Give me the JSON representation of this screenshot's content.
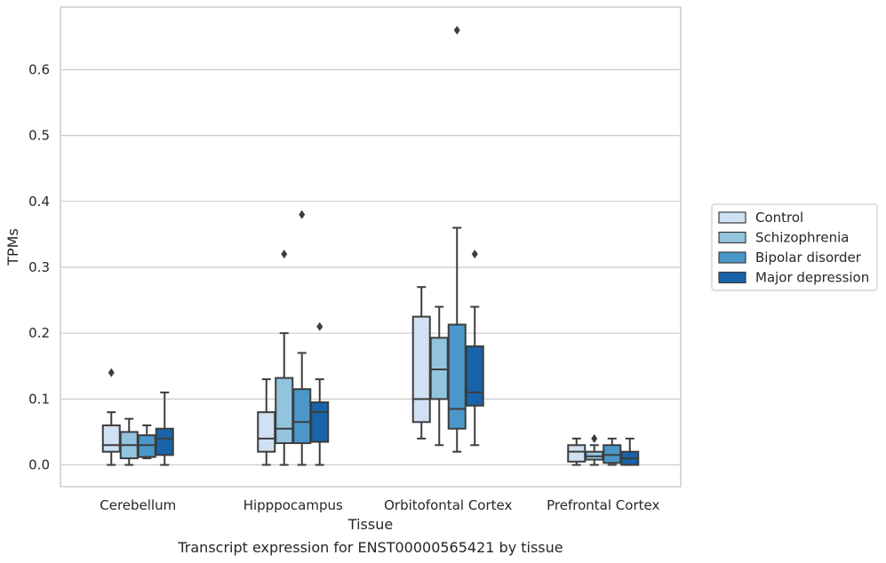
{
  "chart_data": {
    "type": "box",
    "xlabel": "Tissue",
    "ylabel": "TPMs",
    "caption": "Transcript expression for ENST00000565421 by tissue",
    "ylim": [
      -0.033,
      0.695
    ],
    "yticks": [
      "0.0",
      "0.1",
      "0.2",
      "0.3",
      "0.4",
      "0.5",
      "0.6"
    ],
    "grid": "horizontal",
    "legend_position": "right",
    "categories": [
      "Cerebellum",
      "Hipppocampus",
      "Orbitofontal Cortex",
      "Prefrontal Cortex"
    ],
    "series": [
      {
        "name": "Control",
        "color": "#cfe1f2",
        "boxes": [
          {
            "whislo": 0.0,
            "q1": 0.02,
            "med": 0.03,
            "q3": 0.06,
            "whishi": 0.08,
            "fliers": [
              0.14
            ]
          },
          {
            "whislo": 0.0,
            "q1": 0.02,
            "med": 0.04,
            "q3": 0.08,
            "whishi": 0.13,
            "fliers": []
          },
          {
            "whislo": 0.04,
            "q1": 0.065,
            "med": 0.1,
            "q3": 0.225,
            "whishi": 0.27,
            "fliers": []
          },
          {
            "whislo": 0.0,
            "q1": 0.005,
            "med": 0.02,
            "q3": 0.03,
            "whishi": 0.04,
            "fliers": []
          }
        ]
      },
      {
        "name": "Schizophrenia",
        "color": "#93c4de",
        "boxes": [
          {
            "whislo": 0.0,
            "q1": 0.01,
            "med": 0.03,
            "q3": 0.05,
            "whishi": 0.07,
            "fliers": []
          },
          {
            "whislo": 0.0,
            "q1": 0.033,
            "med": 0.055,
            "q3": 0.132,
            "whishi": 0.2,
            "fliers": [
              0.32
            ]
          },
          {
            "whislo": 0.03,
            "q1": 0.1,
            "med": 0.145,
            "q3": 0.193,
            "whishi": 0.24,
            "fliers": []
          },
          {
            "whislo": 0.0,
            "q1": 0.008,
            "med": 0.013,
            "q3": 0.02,
            "whishi": 0.03,
            "fliers": [
              0.04
            ]
          }
        ]
      },
      {
        "name": "Bipolar disorder",
        "color": "#4a98c9",
        "boxes": [
          {
            "whislo": 0.01,
            "q1": 0.012,
            "med": 0.03,
            "q3": 0.045,
            "whishi": 0.06,
            "fliers": []
          },
          {
            "whislo": 0.0,
            "q1": 0.033,
            "med": 0.065,
            "q3": 0.115,
            "whishi": 0.17,
            "fliers": [
              0.38
            ]
          },
          {
            "whislo": 0.02,
            "q1": 0.055,
            "med": 0.085,
            "q3": 0.213,
            "whishi": 0.36,
            "fliers": [
              0.66
            ]
          },
          {
            "whislo": 0.0,
            "q1": 0.003,
            "med": 0.015,
            "q3": 0.03,
            "whishi": 0.04,
            "fliers": []
          }
        ]
      },
      {
        "name": "Major depression",
        "color": "#1764ab",
        "boxes": [
          {
            "whislo": 0.0,
            "q1": 0.015,
            "med": 0.04,
            "q3": 0.055,
            "whishi": 0.11,
            "fliers": []
          },
          {
            "whislo": 0.0,
            "q1": 0.035,
            "med": 0.08,
            "q3": 0.095,
            "whishi": 0.13,
            "fliers": [
              0.21
            ]
          },
          {
            "whislo": 0.03,
            "q1": 0.09,
            "med": 0.11,
            "q3": 0.18,
            "whishi": 0.24,
            "fliers": [
              0.32
            ]
          },
          {
            "whislo": 0.0,
            "q1": 0.0,
            "med": 0.01,
            "q3": 0.02,
            "whishi": 0.04,
            "fliers": []
          }
        ]
      }
    ]
  }
}
